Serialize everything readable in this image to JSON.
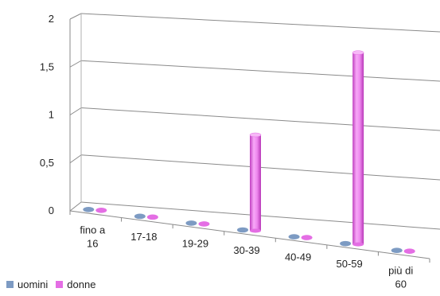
{
  "chart_data": {
    "type": "bar",
    "style": "3d-cylinder",
    "categories": [
      [
        "fino a",
        "16"
      ],
      [
        "17-18"
      ],
      [
        "19-29"
      ],
      [
        "30-39"
      ],
      [
        "40-49"
      ],
      [
        "50-59"
      ],
      [
        "più di",
        "60"
      ]
    ],
    "series": [
      {
        "name": "uomini",
        "color": "#7d9bc3",
        "values": [
          0,
          0,
          0,
          0,
          0,
          0,
          0
        ]
      },
      {
        "name": "donne",
        "color": "#e46ee4",
        "values": [
          0,
          0,
          0,
          1,
          0,
          2,
          0
        ]
      }
    ],
    "y_ticks": [
      "0",
      "0,5",
      "1",
      "1,5",
      "2"
    ],
    "ylim": [
      0,
      2
    ],
    "grid": true,
    "legend_position": "bottom-left"
  }
}
